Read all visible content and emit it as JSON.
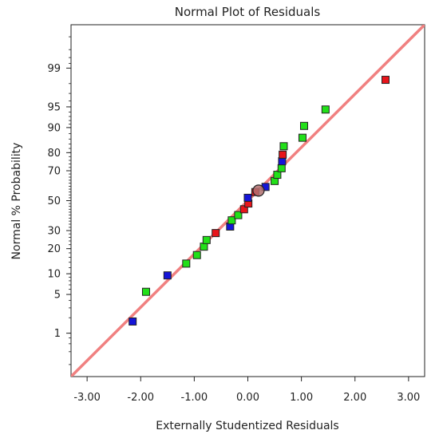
{
  "chart_data": {
    "type": "scatter",
    "title": "Normal Plot of Residuals",
    "xlabel": "Externally Studentized Residuals",
    "ylabel": "Normal % Probability",
    "xlim": [
      -3.3,
      3.3
    ],
    "y_scale": "normal-probability",
    "ylim": [
      0.1,
      99.9
    ],
    "grid": false,
    "legend": "none",
    "x_ticks": [
      "-3.00",
      "-2.00",
      "-1.00",
      "0.00",
      "1.00",
      "2.00",
      "3.00"
    ],
    "x_tick_values": [
      -3,
      -2,
      -1,
      0,
      1,
      2,
      3
    ],
    "y_ticks": [
      "1",
      "5",
      "10",
      "20",
      "30",
      "50",
      "70",
      "80",
      "90",
      "95",
      "99"
    ],
    "y_tick_values": [
      1,
      5,
      10,
      20,
      30,
      50,
      70,
      80,
      90,
      95,
      99
    ],
    "reference_line": {
      "x": [
        -3.3,
        3.3
      ],
      "p": [
        0.1,
        99.9
      ],
      "color": "#f08080"
    },
    "colors": {
      "red": "#e8151b",
      "green": "#22e019",
      "blue": "#1515d8",
      "outline": "#222222",
      "highlight_fill": "#b07070"
    },
    "points": [
      {
        "x": -2.15,
        "p": 1.7,
        "c": "blue"
      },
      {
        "x": -1.9,
        "p": 5.5,
        "c": "green"
      },
      {
        "x": -1.5,
        "p": 9.5,
        "c": "blue"
      },
      {
        "x": -1.15,
        "p": 13.5,
        "c": "green"
      },
      {
        "x": -0.95,
        "p": 17,
        "c": "green"
      },
      {
        "x": -0.82,
        "p": 21,
        "c": "green"
      },
      {
        "x": -0.77,
        "p": 24.5,
        "c": "green"
      },
      {
        "x": -0.6,
        "p": 28.5,
        "c": "red"
      },
      {
        "x": -0.33,
        "p": 32.5,
        "c": "blue"
      },
      {
        "x": -0.3,
        "p": 36.5,
        "c": "green"
      },
      {
        "x": -0.18,
        "p": 40,
        "c": "green"
      },
      {
        "x": -0.07,
        "p": 44,
        "c": "red"
      },
      {
        "x": 0.01,
        "p": 48,
        "c": "red"
      },
      {
        "x": 0.0,
        "p": 52,
        "c": "blue"
      },
      {
        "x": 0.14,
        "p": 56,
        "c": "red"
      },
      {
        "x": 0.33,
        "p": 59.5,
        "c": "blue"
      },
      {
        "x": 0.5,
        "p": 63.5,
        "c": "green"
      },
      {
        "x": 0.55,
        "p": 67.5,
        "c": "green"
      },
      {
        "x": 0.63,
        "p": 71.5,
        "c": "green"
      },
      {
        "x": 0.64,
        "p": 75.5,
        "c": "blue"
      },
      {
        "x": 0.65,
        "p": 79,
        "c": "red"
      },
      {
        "x": 0.67,
        "p": 83,
        "c": "green"
      },
      {
        "x": 1.02,
        "p": 86.5,
        "c": "green"
      },
      {
        "x": 1.05,
        "p": 90.5,
        "c": "green"
      },
      {
        "x": 1.45,
        "p": 94.5,
        "c": "green"
      },
      {
        "x": 2.57,
        "p": 98.3,
        "c": "red"
      }
    ],
    "highlight": {
      "x": 0.2,
      "p": 57
    }
  }
}
